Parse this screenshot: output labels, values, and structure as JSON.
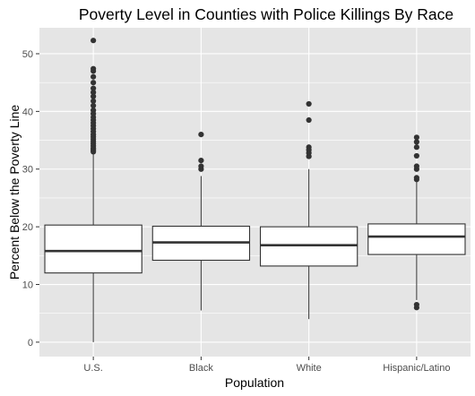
{
  "chart_data": {
    "type": "boxplot",
    "title": "Poverty Level in Counties with Police Killings By Race",
    "xlabel": "Population",
    "ylabel": "Percent Below the Poverty Line",
    "ylim": [
      -2.5,
      54.5
    ],
    "yticks": [
      0,
      10,
      20,
      30,
      40,
      50
    ],
    "grid": true,
    "categories": [
      "U.S.",
      "Black",
      "White",
      "Hispanic/Latino"
    ],
    "boxes": [
      {
        "category": "U.S.",
        "whisker_low": 0,
        "q1": 12.0,
        "median": 15.8,
        "q3": 20.3,
        "whisker_high": 32.8,
        "outliers": [
          33.0,
          33.3,
          33.6,
          34.0,
          34.4,
          34.8,
          35.2,
          35.6,
          36.0,
          36.5,
          37.0,
          37.5,
          38.0,
          38.5,
          39.0,
          39.6,
          40.2,
          41.0,
          41.8,
          42.6,
          43.3,
          44.0,
          45.0,
          46.0,
          47.0,
          47.4,
          52.3
        ]
      },
      {
        "category": "Black",
        "whisker_low": 5.5,
        "q1": 14.2,
        "median": 17.3,
        "q3": 20.1,
        "whisker_high": 28.8,
        "outliers": [
          30.0,
          30.5,
          31.5,
          36.0
        ]
      },
      {
        "category": "White",
        "whisker_low": 4.0,
        "q1": 13.2,
        "median": 16.8,
        "q3": 20.0,
        "whisker_high": 30.0,
        "outliers": [
          32.2,
          32.8,
          33.3,
          33.8,
          38.5,
          41.3
        ]
      },
      {
        "category": "Hispanic/Latino",
        "whisker_low": 7.3,
        "q1": 15.2,
        "median": 18.3,
        "q3": 20.5,
        "whisker_high": 27.8,
        "outliers": [
          6.0,
          6.5,
          28.2,
          28.5,
          30.0,
          30.5,
          32.3,
          33.8,
          34.7,
          35.5
        ]
      }
    ]
  },
  "colors": {
    "panel_bg": "#e5e5e5",
    "grid": "#ffffff",
    "box_fill": "#ffffff",
    "stroke": "#333333",
    "outlier": "#333333",
    "tick": "#333333"
  }
}
